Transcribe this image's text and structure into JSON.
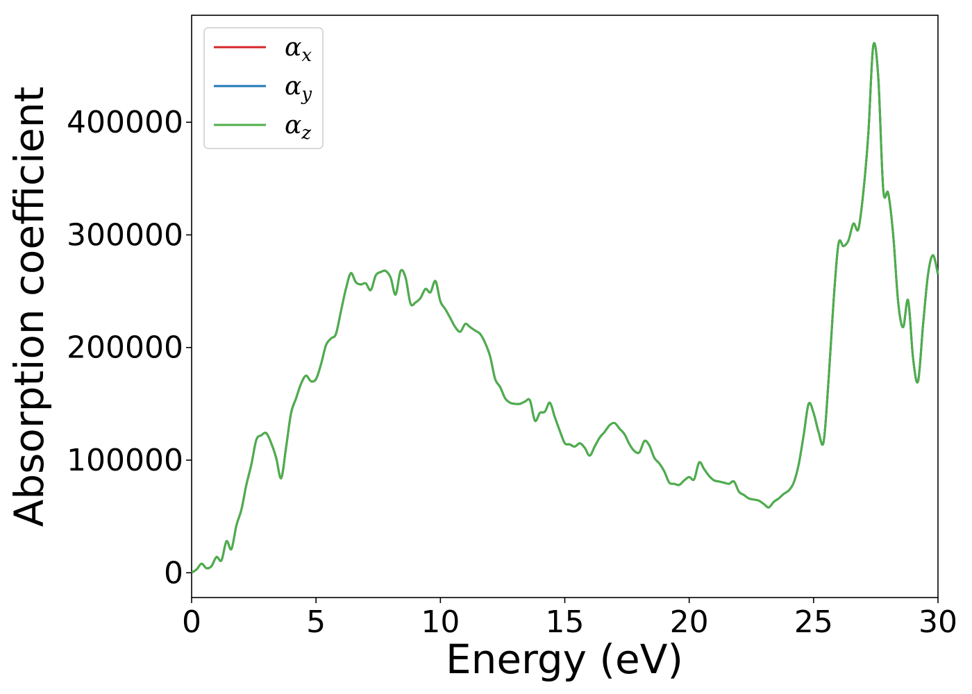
{
  "chart_data": {
    "type": "line",
    "xlabel": "Energy (eV)",
    "ylabel": "Absorption coefficient",
    "xlim": [
      0,
      30
    ],
    "ylim": [
      -22000,
      495000
    ],
    "x_ticks": [
      0,
      5,
      10,
      15,
      20,
      25,
      30
    ],
    "y_ticks": [
      0,
      100000,
      200000,
      300000,
      400000
    ],
    "grid": false,
    "legend_position": "top-left",
    "x": [
      0,
      0.2,
      0.4,
      0.6,
      0.8,
      1.0,
      1.2,
      1.4,
      1.6,
      1.8,
      2.0,
      2.2,
      2.4,
      2.6,
      2.8,
      3.0,
      3.2,
      3.4,
      3.6,
      3.8,
      4.0,
      4.2,
      4.4,
      4.6,
      4.8,
      5.0,
      5.2,
      5.4,
      5.6,
      5.8,
      6.0,
      6.2,
      6.4,
      6.6,
      6.8,
      7.0,
      7.2,
      7.4,
      7.6,
      7.8,
      8.0,
      8.2,
      8.4,
      8.6,
      8.8,
      9.0,
      9.2,
      9.4,
      9.6,
      9.8,
      10.0,
      10.2,
      10.4,
      10.6,
      10.8,
      11.0,
      11.2,
      11.4,
      11.6,
      11.8,
      12.0,
      12.2,
      12.4,
      12.6,
      12.8,
      13.0,
      13.2,
      13.4,
      13.6,
      13.8,
      14.0,
      14.2,
      14.4,
      14.6,
      14.8,
      15.0,
      15.2,
      15.4,
      15.6,
      15.8,
      16.0,
      16.2,
      16.4,
      16.6,
      16.8,
      17.0,
      17.2,
      17.4,
      17.6,
      17.8,
      18.0,
      18.2,
      18.4,
      18.6,
      18.8,
      19.0,
      19.2,
      19.4,
      19.6,
      19.8,
      20.0,
      20.2,
      20.4,
      20.6,
      20.8,
      21.0,
      21.2,
      21.4,
      21.6,
      21.8,
      22.0,
      22.2,
      22.4,
      22.6,
      22.8,
      23.0,
      23.2,
      23.4,
      23.6,
      23.8,
      24.0,
      24.2,
      24.4,
      24.6,
      24.8,
      25.0,
      25.2,
      25.4,
      25.6,
      25.8,
      26.0,
      26.2,
      26.4,
      26.6,
      26.8,
      27.0,
      27.2,
      27.4,
      27.6,
      27.8,
      28.0,
      28.2,
      28.4,
      28.6,
      28.8,
      29.0,
      29.2,
      29.4,
      29.6,
      29.8,
      30.0
    ],
    "series": [
      {
        "name": "α_x",
        "label_main": "α",
        "label_sub": "x",
        "color": "#d62728",
        "values": [
          0,
          3000,
          8000,
          4000,
          6000,
          14000,
          11000,
          28000,
          21000,
          42000,
          56000,
          78000,
          96000,
          118000,
          122000,
          124000,
          115000,
          102000,
          84000,
          112000,
          142000,
          155000,
          168000,
          175000,
          170000,
          172000,
          185000,
          202000,
          208000,
          212000,
          232000,
          252000,
          266000,
          258000,
          256000,
          257000,
          251000,
          264000,
          267000,
          268000,
          262000,
          247000,
          268000,
          262000,
          239000,
          240000,
          244000,
          252000,
          249000,
          259000,
          241000,
          234000,
          226000,
          218000,
          214000,
          221000,
          218000,
          215000,
          212000,
          204000,
          192000,
          172000,
          165000,
          155000,
          151000,
          150000,
          150000,
          152000,
          153000,
          135000,
          142000,
          143000,
          151000,
          138000,
          126000,
          115000,
          114000,
          112000,
          115000,
          111000,
          104000,
          112000,
          120000,
          125000,
          131000,
          133000,
          128000,
          123000,
          114000,
          108000,
          107000,
          117000,
          113000,
          102000,
          97000,
          90000,
          80000,
          79000,
          78000,
          82000,
          85000,
          83000,
          98000,
          92000,
          86000,
          82000,
          81000,
          80000,
          79000,
          81000,
          72000,
          69000,
          66000,
          65000,
          64000,
          61000,
          58000,
          63000,
          66000,
          70000,
          73000,
          80000,
          96000,
          122000,
          150000,
          142000,
          125000,
          116000,
          170000,
          240000,
          292000,
          290000,
          295000,
          310000,
          305000,
          338000,
          390000,
          468000,
          440000,
          340000,
          337000,
          300000,
          240000,
          218000,
          242000,
          190000,
          170000,
          220000,
          265000,
          282000,
          265000
        ]
      },
      {
        "name": "α_y",
        "label_main": "α",
        "label_sub": "y",
        "color": "#1f77b4",
        "values": [
          0,
          3000,
          8000,
          4000,
          6000,
          14000,
          11000,
          28000,
          21000,
          42000,
          56000,
          78000,
          96000,
          118000,
          122000,
          124000,
          115000,
          102000,
          84000,
          112000,
          142000,
          155000,
          168000,
          175000,
          170000,
          172000,
          185000,
          202000,
          208000,
          212000,
          232000,
          252000,
          266000,
          258000,
          256000,
          257000,
          251000,
          264000,
          267000,
          268000,
          262000,
          247000,
          268000,
          262000,
          239000,
          240000,
          244000,
          252000,
          249000,
          259000,
          241000,
          234000,
          226000,
          218000,
          214000,
          221000,
          218000,
          215000,
          212000,
          204000,
          192000,
          172000,
          165000,
          155000,
          151000,
          150000,
          150000,
          152000,
          153000,
          135000,
          142000,
          143000,
          151000,
          138000,
          126000,
          115000,
          114000,
          112000,
          115000,
          111000,
          104000,
          112000,
          120000,
          125000,
          131000,
          133000,
          128000,
          123000,
          114000,
          108000,
          107000,
          117000,
          113000,
          102000,
          97000,
          90000,
          80000,
          79000,
          78000,
          82000,
          85000,
          83000,
          98000,
          92000,
          86000,
          82000,
          81000,
          80000,
          79000,
          81000,
          72000,
          69000,
          66000,
          65000,
          64000,
          61000,
          58000,
          63000,
          66000,
          70000,
          73000,
          80000,
          96000,
          122000,
          150000,
          142000,
          125000,
          116000,
          170000,
          240000,
          292000,
          290000,
          295000,
          310000,
          305000,
          338000,
          390000,
          468000,
          440000,
          340000,
          337000,
          300000,
          240000,
          218000,
          242000,
          190000,
          170000,
          220000,
          265000,
          282000,
          265000
        ]
      },
      {
        "name": "α_z",
        "label_main": "α",
        "label_sub": "z",
        "color": "#4daf4a",
        "values": [
          0,
          3000,
          8000,
          4000,
          6000,
          14000,
          11000,
          28000,
          21000,
          42000,
          56000,
          78000,
          96000,
          118000,
          122000,
          124000,
          115000,
          102000,
          84000,
          112000,
          142000,
          155000,
          168000,
          175000,
          170000,
          172000,
          185000,
          202000,
          208000,
          212000,
          232000,
          252000,
          266000,
          258000,
          256000,
          257000,
          251000,
          264000,
          267000,
          268000,
          262000,
          247000,
          268000,
          262000,
          239000,
          240000,
          244000,
          252000,
          249000,
          259000,
          241000,
          234000,
          226000,
          218000,
          214000,
          221000,
          218000,
          215000,
          212000,
          204000,
          192000,
          172000,
          165000,
          155000,
          151000,
          150000,
          150000,
          152000,
          153000,
          135000,
          142000,
          143000,
          151000,
          138000,
          126000,
          115000,
          114000,
          112000,
          115000,
          111000,
          104000,
          112000,
          120000,
          125000,
          131000,
          133000,
          128000,
          123000,
          114000,
          108000,
          107000,
          117000,
          113000,
          102000,
          97000,
          90000,
          80000,
          79000,
          78000,
          82000,
          85000,
          83000,
          98000,
          92000,
          86000,
          82000,
          81000,
          80000,
          79000,
          81000,
          72000,
          69000,
          66000,
          65000,
          64000,
          61000,
          58000,
          63000,
          66000,
          70000,
          73000,
          80000,
          96000,
          122000,
          150000,
          142000,
          125000,
          116000,
          170000,
          240000,
          292000,
          290000,
          295000,
          310000,
          305000,
          338000,
          390000,
          468000,
          440000,
          340000,
          337000,
          300000,
          240000,
          218000,
          242000,
          190000,
          170000,
          220000,
          265000,
          282000,
          265000
        ]
      }
    ]
  }
}
